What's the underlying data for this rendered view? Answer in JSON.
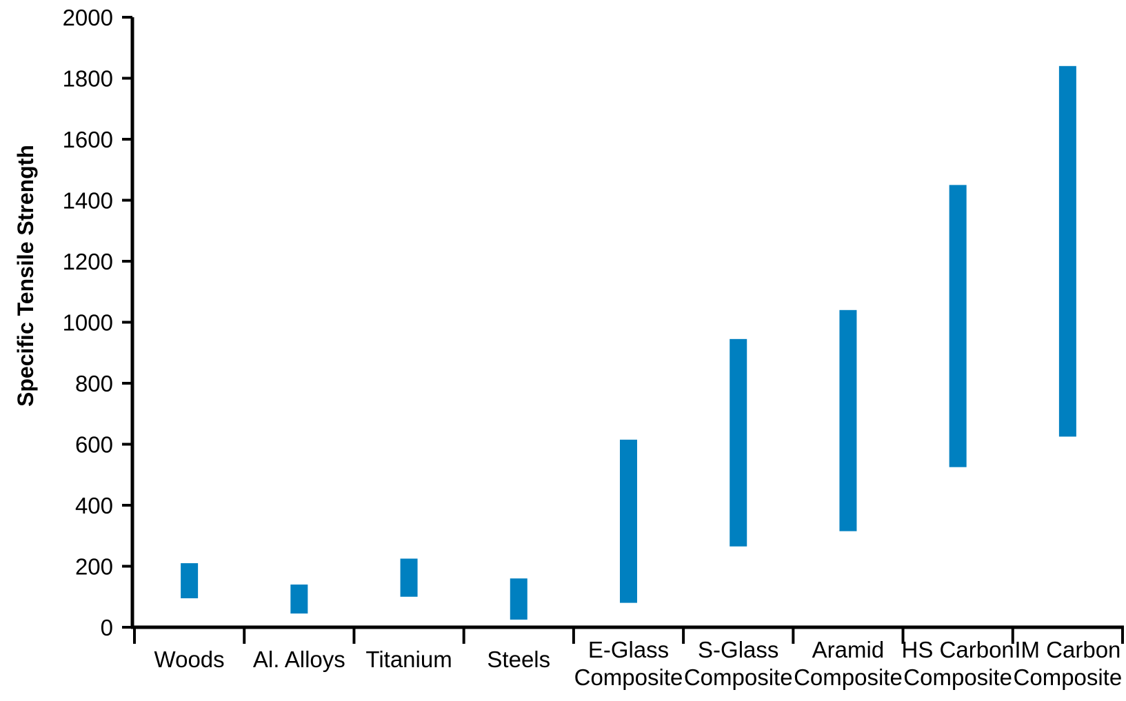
{
  "chart_data": {
    "type": "bar",
    "ylabel": "Specific Tensile Strength",
    "xlabel": "",
    "ylim": [
      0,
      2000
    ],
    "yticks": [
      "0",
      "200",
      "400",
      "600",
      "800",
      "1000",
      "1200",
      "1400",
      "1600",
      "1800",
      "2000"
    ],
    "grid": false,
    "categories": [
      [
        "Woods"
      ],
      [
        "Al. Alloys"
      ],
      [
        "Titanium"
      ],
      [
        "Steels"
      ],
      [
        "E-Glass",
        "Composite"
      ],
      [
        "S-Glass",
        "Composite"
      ],
      [
        "Aramid",
        "Composite"
      ],
      [
        "HS Carbon",
        "Composite"
      ],
      [
        "IM Carbon",
        "Composite"
      ]
    ],
    "ranges": [
      [
        95,
        210
      ],
      [
        45,
        140
      ],
      [
        100,
        225
      ],
      [
        25,
        160
      ],
      [
        80,
        615
      ],
      [
        265,
        945
      ],
      [
        315,
        1040
      ],
      [
        525,
        1450
      ],
      [
        625,
        1840
      ]
    ],
    "bar_color": "#0080c0"
  }
}
